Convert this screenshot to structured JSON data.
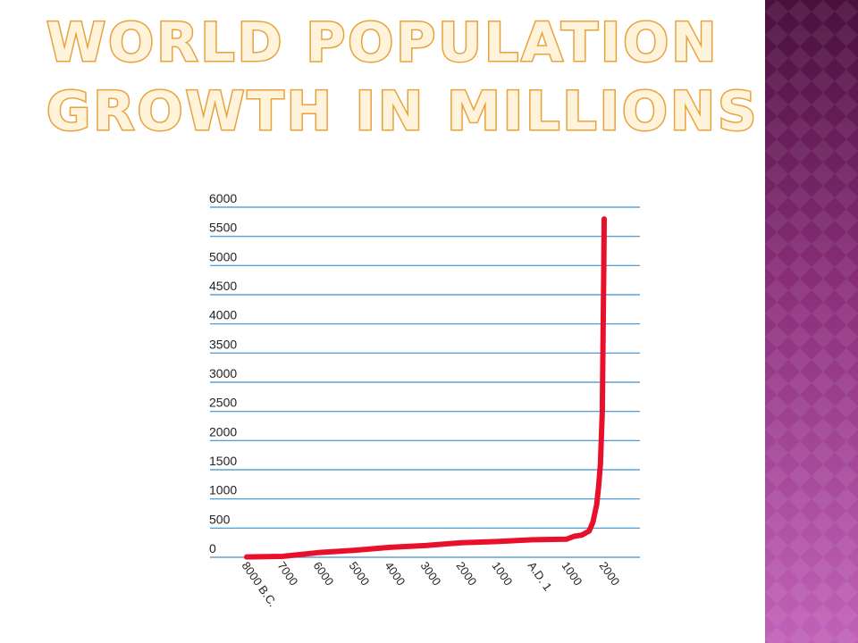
{
  "slide": {
    "title_lines": [
      "WORLD POPULATION",
      "GROWTH IN MILLIONS"
    ],
    "title_fill_color": "#fff3dc",
    "title_outline_color": "#e8a23a",
    "accent_bar_colors": [
      "#4a0f3d",
      "#b04fa6",
      "#c162b8"
    ]
  },
  "chart_data": {
    "type": "line",
    "title": "",
    "xlabel": "",
    "ylabel": "",
    "ylim": [
      0,
      6000
    ],
    "y_ticks": [
      0,
      500,
      1000,
      1500,
      2000,
      2500,
      3000,
      3500,
      4000,
      4500,
      5000,
      5500,
      6000
    ],
    "x_tick_values": [
      -8000,
      -7000,
      -6000,
      -5000,
      -4000,
      -3000,
      -2000,
      -1000,
      1,
      1000,
      2000
    ],
    "x_tick_labels": [
      "8000 B.C.",
      "7000",
      "6000",
      "5000",
      "4000",
      "3000",
      "2000",
      "1000",
      "A.D. 1",
      "1000",
      "2000"
    ],
    "xlim": [
      -8000,
      2000
    ],
    "grid": true,
    "line_color": "#e8102a",
    "grid_color": "#3a8fd0",
    "series": [
      {
        "x": [
          -8000,
          -7000,
          -6000,
          -5000,
          -4000,
          -3000,
          -2000,
          -1000,
          1,
          1000,
          1200,
          1400,
          1600,
          1700,
          1800,
          1850,
          1900,
          1950,
          1970,
          1990,
          2000
        ],
        "values": [
          5,
          15,
          80,
          120,
          170,
          200,
          250,
          270,
          300,
          310,
          360,
          380,
          450,
          600,
          900,
          1200,
          1600,
          2500,
          3700,
          5000,
          5800
        ]
      }
    ]
  }
}
